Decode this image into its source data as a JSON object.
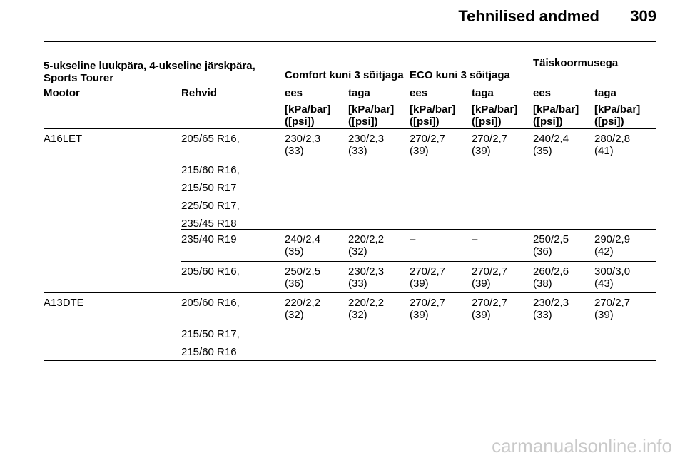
{
  "page": {
    "title": "Tehnilised andmed",
    "number": "309"
  },
  "table": {
    "group_header": {
      "vehicle": "5-ukseline luukpära, 4-ukseline järskpära, Sports Tourer",
      "comfort": "Comfort kuni 3 sõitjaga",
      "eco": "ECO kuni 3 sõitjaga",
      "full": "Täiskoormusega"
    },
    "col_header": {
      "engine": "Mootor",
      "tyre": "Rehvid",
      "front": "ees",
      "rear": "taga",
      "unit_line1": "[kPa/bar]",
      "unit_line2": "([psi])"
    },
    "engines": [
      "A16LET",
      "A13DTE"
    ],
    "rows": [
      {
        "engine": "A16LET",
        "tyres": [
          "205/65 R16,",
          "215/60 R16,",
          "215/50 R17",
          "225/50 R17,",
          "235/45 R18"
        ],
        "values": [
          [
            "230/2,3",
            "(33)"
          ],
          [
            "230/2,3",
            "(33)"
          ],
          [
            "270/2,7",
            "(39)"
          ],
          [
            "270/2,7",
            "(39)"
          ],
          [
            "240/2,4",
            "(35)"
          ],
          [
            "280/2,8",
            "(41)"
          ]
        ]
      },
      {
        "engine": "",
        "tyres": [
          "235/40 R19"
        ],
        "values": [
          [
            "240/2,4",
            "(35)"
          ],
          [
            "220/2,2",
            "(32)"
          ],
          [
            "–",
            ""
          ],
          [
            "–",
            ""
          ],
          [
            "250/2,5",
            "(36)"
          ],
          [
            "290/2,9",
            "(42)"
          ]
        ]
      },
      {
        "engine": "",
        "tyres": [
          "205/60 R16,"
        ],
        "values": [
          [
            "250/2,5",
            "(36)"
          ],
          [
            "230/2,3",
            "(33)"
          ],
          [
            "270/2,7",
            "(39)"
          ],
          [
            "270/2,7",
            "(39)"
          ],
          [
            "260/2,6",
            "(38)"
          ],
          [
            "300/3,0",
            "(43)"
          ]
        ]
      },
      {
        "engine": "A13DTE",
        "tyres": [
          "205/60 R16,",
          "215/50 R17,",
          "215/60 R16"
        ],
        "values": [
          [
            "220/2,2",
            "(32)"
          ],
          [
            "220/2,2",
            "(32)"
          ],
          [
            "270/2,7",
            "(39)"
          ],
          [
            "270/2,7",
            "(39)"
          ],
          [
            "230/2,3",
            "(33)"
          ],
          [
            "270/2,7",
            "(39)"
          ]
        ]
      }
    ]
  },
  "watermark": "carmanualsonline.info"
}
